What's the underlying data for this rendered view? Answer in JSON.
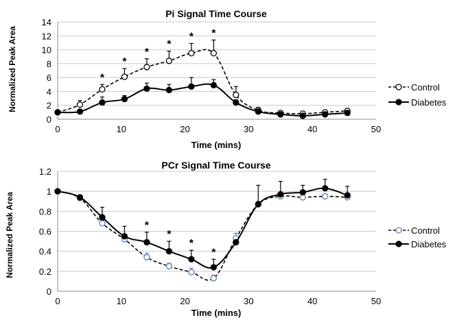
{
  "chart_data": [
    {
      "type": "line",
      "title": "Pi Signal Time Course",
      "xlabel": "Time (mins)",
      "ylabel": "Normalized  Peak Area",
      "xlim": [
        0,
        50
      ],
      "ylim": [
        0,
        14
      ],
      "xticks": [
        "0",
        "10",
        "20",
        "30",
        "40",
        "50"
      ],
      "yticks": [
        "0",
        "2",
        "4",
        "6",
        "8",
        "10",
        "12",
        "14"
      ],
      "grid": true,
      "legend_position": "right",
      "significance_marker": "*",
      "significant_x": [
        7,
        10.5,
        14,
        17.5,
        21,
        24.5
      ],
      "series": [
        {
          "name": "Control",
          "style": "dashed-open-circle",
          "color": "#000000",
          "x": [
            0,
            3.5,
            7,
            10.5,
            14,
            17.5,
            21,
            24.5,
            28,
            31.5,
            35,
            38.5,
            42,
            45.5
          ],
          "y": [
            1.0,
            2.1,
            4.3,
            6.1,
            7.5,
            8.4,
            9.5,
            9.5,
            3.5,
            1.3,
            0.9,
            0.8,
            1.0,
            1.2
          ],
          "err": [
            0,
            0.6,
            0.7,
            1.2,
            1.2,
            1.4,
            1.4,
            1.9,
            1.2,
            0.4,
            0.3,
            0.3,
            0.3,
            0.3
          ]
        },
        {
          "name": "Diabetes",
          "style": "solid-filled-circle",
          "color": "#000000",
          "x": [
            0,
            3.5,
            7,
            10.5,
            14,
            17.5,
            21,
            24.5,
            28,
            31.5,
            35,
            38.5,
            42,
            45.5
          ],
          "y": [
            1.0,
            1.1,
            2.4,
            2.9,
            4.4,
            4.2,
            4.7,
            4.9,
            2.4,
            1.1,
            0.7,
            0.5,
            0.7,
            0.9
          ],
          "err": [
            0,
            0.2,
            0.8,
            0.5,
            0.8,
            0.8,
            1.3,
            0.8,
            0.4,
            0.3,
            0.2,
            0.2,
            0.2,
            0.2
          ]
        }
      ]
    },
    {
      "type": "line",
      "title": "PCr Signal Time Course",
      "xlabel": "Time (mins)",
      "ylabel": "Normalized Peak Area",
      "xlim": [
        0,
        50
      ],
      "ylim": [
        0,
        1.2
      ],
      "xticks": [
        "0",
        "10",
        "20",
        "30",
        "40",
        "50"
      ],
      "yticks": [
        "0",
        "0.2",
        "0.4",
        "0.6",
        "0.8",
        "1",
        "1.2"
      ],
      "grid": true,
      "legend_position": "right",
      "significance_marker": "*",
      "significant_x": [
        14,
        17.5,
        21,
        24.5
      ],
      "series": [
        {
          "name": "Control",
          "style": "dashed-open-circle",
          "color": "#5b7fb4",
          "x": [
            0,
            3.5,
            7,
            10.5,
            14,
            17.5,
            21,
            24.5,
            28,
            31.5,
            35,
            38.5,
            42,
            45.5
          ],
          "y": [
            1.0,
            0.93,
            0.68,
            0.52,
            0.34,
            0.25,
            0.19,
            0.13,
            0.53,
            0.87,
            0.95,
            0.94,
            0.95,
            0.94
          ],
          "err": [
            0,
            0.02,
            0.03,
            0.03,
            0.04,
            0.03,
            0.04,
            0.03,
            0.05,
            0.03,
            0.02,
            0.02,
            0.02,
            0.02
          ]
        },
        {
          "name": "Diabetes",
          "style": "solid-filled-circle",
          "color": "#000000",
          "x": [
            0,
            3.5,
            7,
            10.5,
            14,
            17.5,
            21,
            24.5,
            28,
            31.5,
            35,
            38.5,
            42,
            45.5
          ],
          "y": [
            1.0,
            0.94,
            0.74,
            0.55,
            0.49,
            0.4,
            0.32,
            0.24,
            0.49,
            0.87,
            0.97,
            0.99,
            1.03,
            0.96
          ],
          "err": [
            0,
            0.02,
            0.1,
            0.1,
            0.1,
            0.1,
            0.09,
            0.08,
            0.05,
            0.19,
            0.13,
            0.07,
            0.09,
            0.09
          ]
        }
      ]
    }
  ]
}
